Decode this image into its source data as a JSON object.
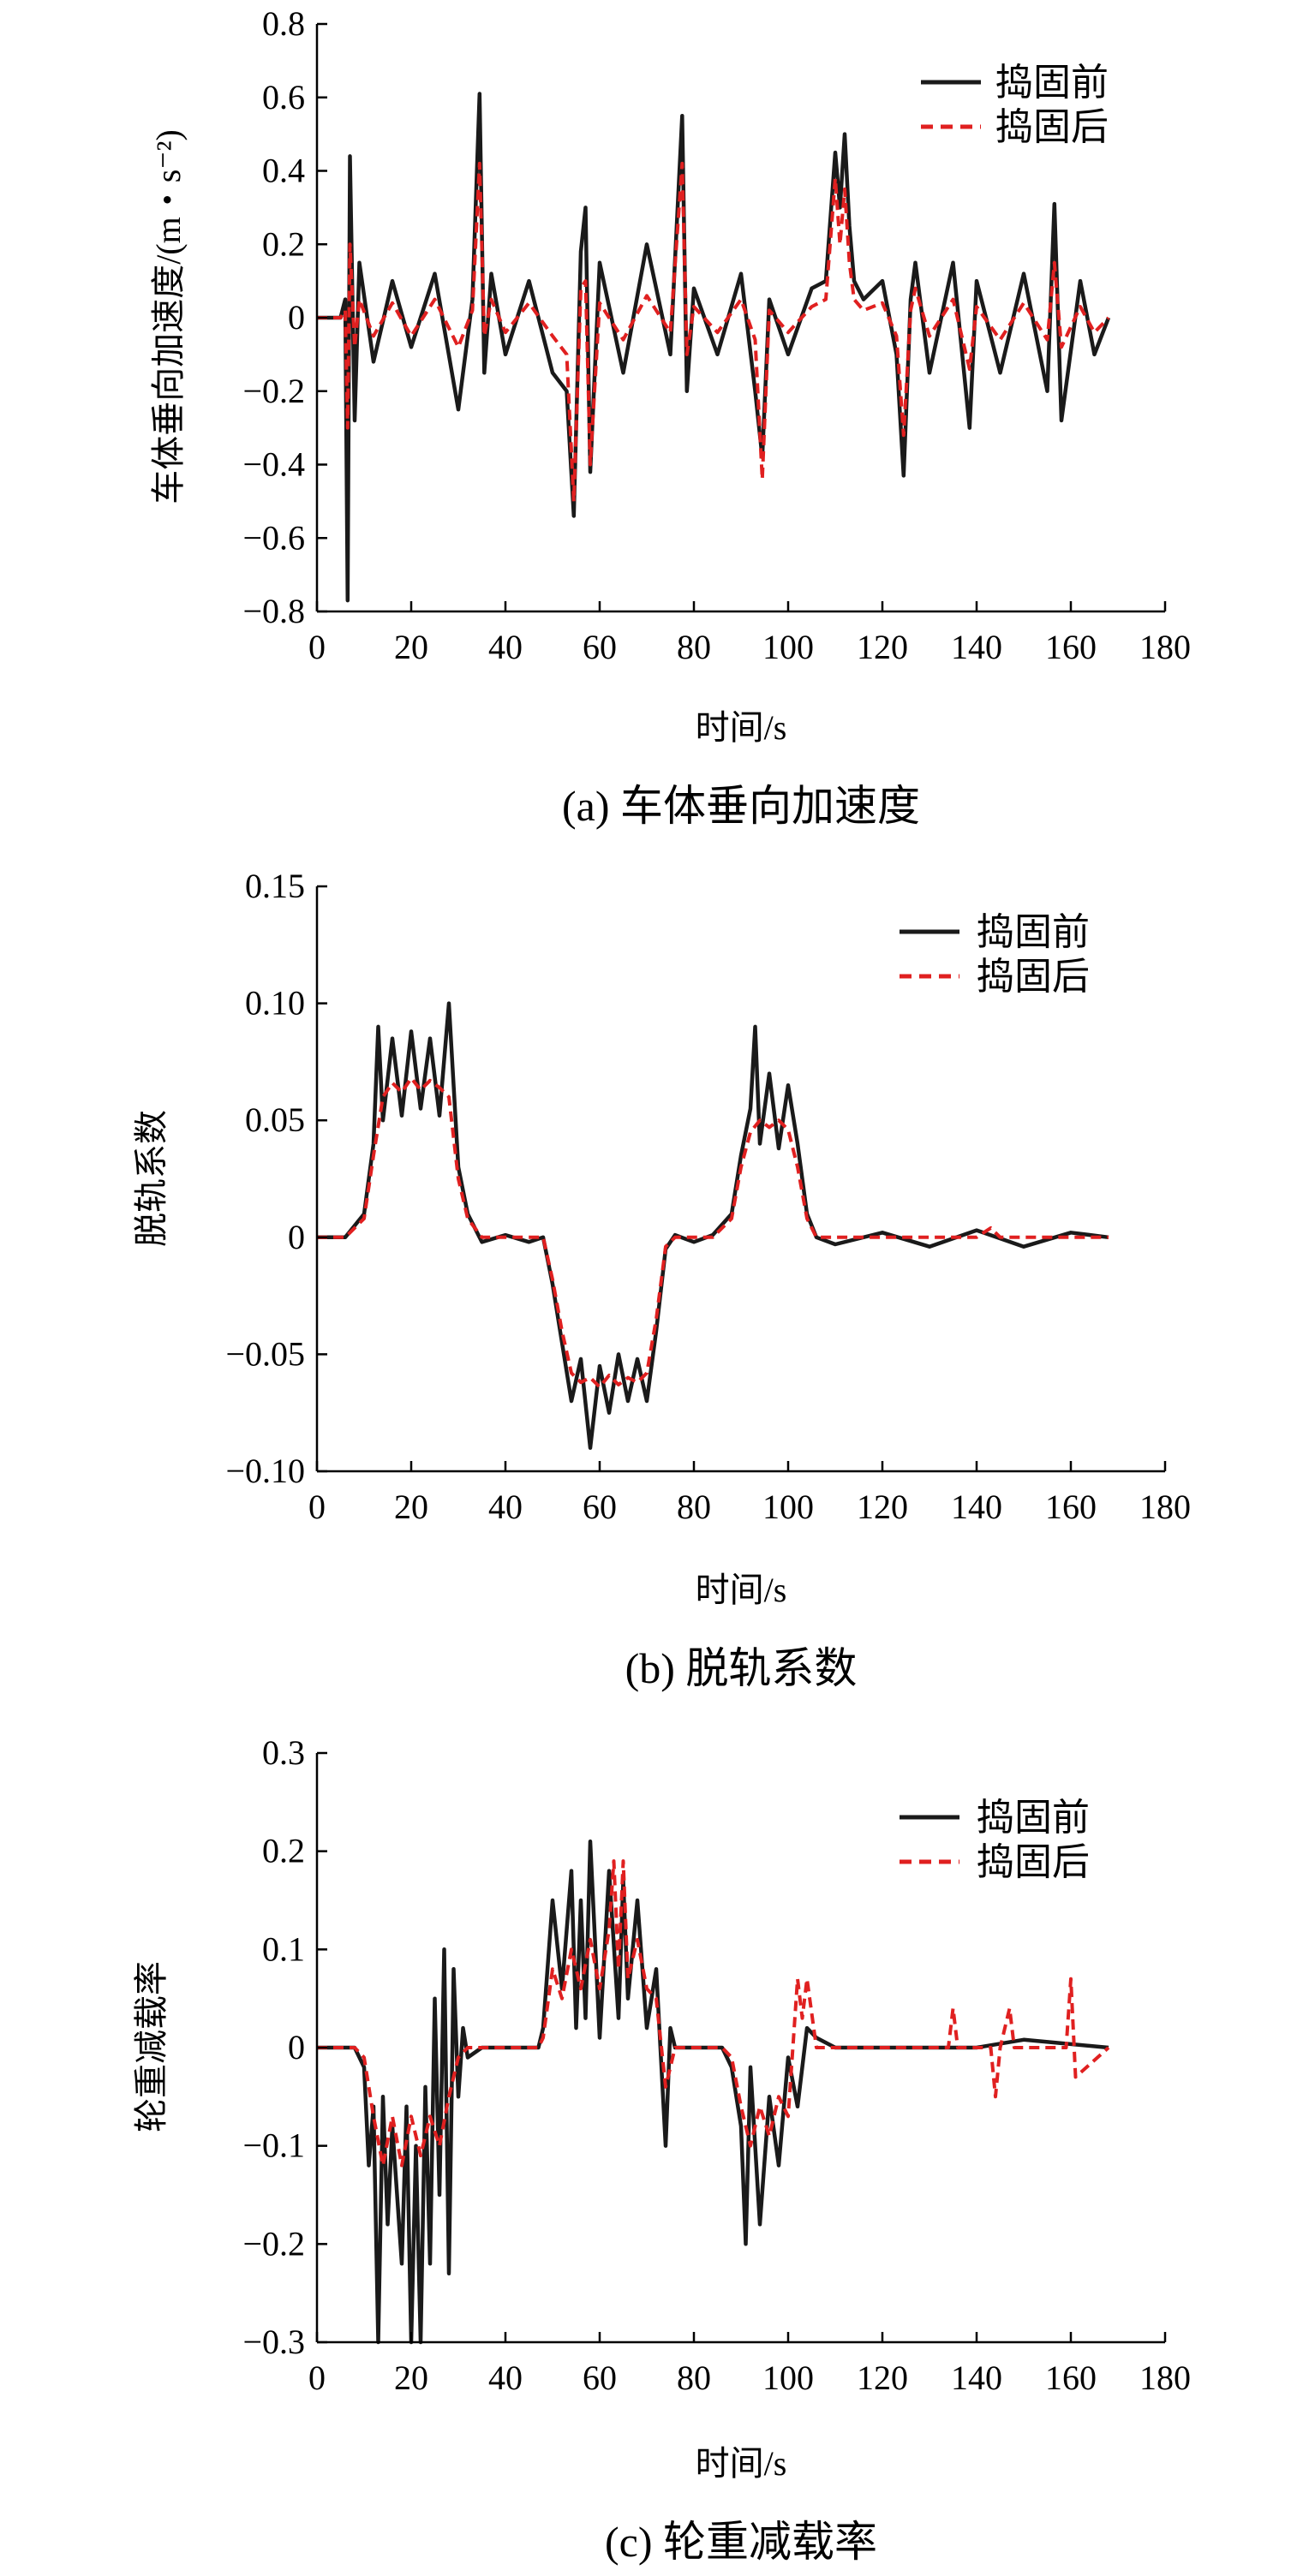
{
  "chart_data": [
    {
      "type": "line",
      "caption": "(a) 车体垂向加速度",
      "xlabel": "时间/s",
      "ylabel": "车体垂向加速度/(m・s⁻²)",
      "xlim": [
        0,
        180
      ],
      "ylim": [
        -0.8,
        0.8
      ],
      "xticks": [
        0,
        20,
        40,
        60,
        80,
        100,
        120,
        140,
        160,
        180
      ],
      "xtick_labels": [
        "0",
        "20",
        "40",
        "60",
        "80",
        "100",
        "120",
        "140",
        "160",
        "180"
      ],
      "yticks": [
        -0.8,
        -0.6,
        -0.4,
        -0.2,
        0,
        0.2,
        0.4,
        0.6,
        0.8
      ],
      "ytick_labels": [
        "−0.8",
        "−0.6",
        "−0.4",
        "−0.2",
        "0",
        "0.2",
        "0.4",
        "0.6",
        "0.8"
      ],
      "legend_position": "top-right",
      "series": [
        {
          "name": "捣固前",
          "color": "#1a1a1a",
          "dash": "solid",
          "x": [
            0,
            5,
            6,
            6.5,
            7,
            8,
            9,
            12,
            16,
            20,
            25,
            30,
            33,
            34.5,
            35.5,
            37,
            40,
            45,
            50,
            53,
            54.5,
            56,
            57,
            58,
            60,
            65,
            70,
            75,
            77.5,
            78.5,
            80,
            85,
            90,
            93,
            94.5,
            96,
            100,
            105,
            108,
            110,
            111,
            112,
            113,
            114,
            116,
            120,
            123,
            124.5,
            126,
            127,
            130,
            135,
            138.5,
            140,
            145,
            150,
            155,
            156.5,
            158,
            162,
            165,
            168
          ],
          "y": [
            0,
            0,
            0.05,
            -0.77,
            0.44,
            -0.28,
            0.15,
            -0.12,
            0.1,
            -0.08,
            0.12,
            -0.25,
            0.05,
            0.61,
            -0.15,
            0.12,
            -0.1,
            0.1,
            -0.15,
            -0.2,
            -0.54,
            0.18,
            0.3,
            -0.42,
            0.15,
            -0.15,
            0.2,
            -0.1,
            0.55,
            -0.2,
            0.08,
            -0.1,
            0.12,
            -0.2,
            -0.38,
            0.05,
            -0.1,
            0.08,
            0.1,
            0.45,
            0.3,
            0.5,
            0.25,
            0.1,
            0.05,
            0.1,
            -0.1,
            -0.43,
            0.05,
            0.15,
            -0.15,
            0.15,
            -0.3,
            0.1,
            -0.15,
            0.12,
            -0.2,
            0.31,
            -0.28,
            0.1,
            -0.1,
            0
          ]
        },
        {
          "name": "捣固后",
          "color": "#e02020",
          "dash": "dashed",
          "x": [
            0,
            5,
            6,
            6.5,
            7,
            8,
            9,
            12,
            16,
            20,
            25,
            30,
            33,
            34.5,
            35.5,
            37,
            40,
            45,
            50,
            53,
            54.5,
            56,
            57,
            58,
            60,
            65,
            70,
            75,
            77.5,
            78.5,
            80,
            85,
            90,
            93,
            94.5,
            96,
            100,
            105,
            108,
            110,
            111,
            112,
            113,
            114,
            116,
            120,
            123,
            124.5,
            126,
            127,
            130,
            135,
            138.5,
            140,
            145,
            150,
            155,
            156.5,
            158,
            162,
            165,
            168
          ],
          "y": [
            0,
            0,
            0.02,
            -0.3,
            0.2,
            -0.08,
            0.05,
            -0.05,
            0.04,
            -0.05,
            0.05,
            -0.08,
            0.02,
            0.42,
            -0.05,
            0.05,
            -0.04,
            0.04,
            -0.05,
            -0.1,
            -0.5,
            0.08,
            0.1,
            -0.4,
            0.04,
            -0.06,
            0.06,
            -0.04,
            0.42,
            -0.1,
            0.03,
            -0.04,
            0.05,
            -0.06,
            -0.44,
            0.02,
            -0.04,
            0.03,
            0.05,
            0.38,
            0.2,
            0.35,
            0.15,
            0.05,
            0.02,
            0.04,
            -0.05,
            -0.32,
            0.02,
            0.08,
            -0.05,
            0.05,
            -0.14,
            0.03,
            -0.06,
            0.04,
            -0.06,
            0.15,
            -0.08,
            0.03,
            -0.04,
            0
          ]
        }
      ]
    },
    {
      "type": "line",
      "caption": "(b) 脱轨系数",
      "xlabel": "时间/s",
      "ylabel": "脱轨系数",
      "xlim": [
        0,
        180
      ],
      "ylim": [
        -0.1,
        0.15
      ],
      "xticks": [
        0,
        20,
        40,
        60,
        80,
        100,
        120,
        140,
        160,
        180
      ],
      "xtick_labels": [
        "0",
        "20",
        "40",
        "60",
        "80",
        "100",
        "120",
        "140",
        "160",
        "180"
      ],
      "yticks": [
        -0.1,
        -0.05,
        0,
        0.05,
        0.1,
        0.15
      ],
      "ytick_labels": [
        "−0.10",
        "−0.05",
        "0",
        "0.05",
        "0.10",
        "0.15"
      ],
      "legend_position": "top-right",
      "series": [
        {
          "name": "捣固前",
          "color": "#1a1a1a",
          "dash": "solid",
          "x": [
            0,
            6,
            10,
            12,
            13,
            14,
            16,
            18,
            20,
            22,
            24,
            26,
            28,
            30,
            32,
            35,
            40,
            45,
            48,
            50,
            52,
            54,
            56,
            58,
            60,
            62,
            64,
            66,
            68,
            70,
            72,
            74,
            76,
            80,
            84,
            88,
            90,
            92,
            93,
            94,
            96,
            98,
            100,
            102,
            104,
            106,
            110,
            120,
            130,
            140,
            150,
            160,
            168
          ],
          "y": [
            0,
            0,
            0.01,
            0.04,
            0.09,
            0.05,
            0.085,
            0.052,
            0.088,
            0.055,
            0.085,
            0.052,
            0.1,
            0.03,
            0.01,
            -0.002,
            0.001,
            -0.002,
            0,
            -0.02,
            -0.045,
            -0.07,
            -0.052,
            -0.09,
            -0.055,
            -0.075,
            -0.05,
            -0.07,
            -0.052,
            -0.07,
            -0.04,
            -0.005,
            0.001,
            -0.002,
            0.001,
            0.01,
            0.035,
            0.055,
            0.09,
            0.04,
            0.07,
            0.038,
            0.065,
            0.04,
            0.01,
            0,
            -0.003,
            0.002,
            -0.004,
            0.003,
            -0.004,
            0.002,
            0
          ]
        },
        {
          "name": "捣固后",
          "color": "#e02020",
          "dash": "dashed",
          "x": [
            0,
            6,
            10,
            12,
            14,
            16,
            18,
            20,
            22,
            24,
            26,
            28,
            30,
            32,
            35,
            40,
            45,
            48,
            50,
            52,
            54,
            56,
            58,
            60,
            62,
            64,
            66,
            68,
            70,
            72,
            74,
            76,
            80,
            84,
            88,
            90,
            92,
            94,
            96,
            98,
            100,
            102,
            104,
            106,
            110,
            120,
            130,
            140,
            143,
            145,
            150,
            160,
            168
          ],
          "y": [
            0,
            0,
            0.008,
            0.035,
            0.06,
            0.066,
            0.062,
            0.068,
            0.063,
            0.067,
            0.064,
            0.06,
            0.025,
            0.008,
            0,
            0,
            0,
            0,
            -0.018,
            -0.04,
            -0.058,
            -0.062,
            -0.06,
            -0.064,
            -0.059,
            -0.063,
            -0.06,
            -0.062,
            -0.058,
            -0.035,
            -0.004,
            0,
            0,
            0,
            0.008,
            0.03,
            0.045,
            0.05,
            0.047,
            0.05,
            0.046,
            0.03,
            0.008,
            0,
            0,
            0,
            0,
            0,
            0.004,
            0,
            0,
            0,
            0
          ]
        }
      ]
    },
    {
      "type": "line",
      "caption": "(c) 轮重减载率",
      "xlabel": "时间/s",
      "ylabel": "轮重减载率",
      "xlim": [
        0,
        180
      ],
      "ylim": [
        -0.3,
        0.3
      ],
      "xticks": [
        0,
        20,
        40,
        60,
        80,
        100,
        120,
        140,
        160,
        180
      ],
      "xtick_labels": [
        "0",
        "20",
        "40",
        "60",
        "80",
        "100",
        "120",
        "140",
        "160",
        "180"
      ],
      "yticks": [
        -0.3,
        -0.2,
        -0.1,
        0,
        0.1,
        0.2,
        0.3
      ],
      "ytick_labels": [
        "−0.3",
        "−0.2",
        "−0.1",
        "0",
        "0.1",
        "0.2",
        "0.3"
      ],
      "legend_position": "top-right",
      "series": [
        {
          "name": "捣固前",
          "color": "#1a1a1a",
          "dash": "solid",
          "x": [
            0,
            8,
            10,
            11,
            12,
            13,
            14,
            15,
            16,
            18,
            19,
            20,
            21,
            22,
            23,
            24,
            25,
            26,
            27,
            28,
            29,
            30,
            31,
            32,
            35,
            40,
            47,
            48,
            50,
            52,
            54,
            55,
            56,
            57,
            58,
            60,
            62,
            64,
            65,
            66,
            68,
            70,
            72,
            74,
            75,
            76,
            80,
            86,
            88,
            90,
            91,
            92,
            94,
            96,
            98,
            100,
            102,
            104,
            106,
            108,
            110,
            120,
            140,
            150,
            168
          ],
          "y": [
            0,
            0,
            -0.02,
            -0.12,
            -0.06,
            -0.3,
            -0.05,
            -0.18,
            -0.08,
            -0.22,
            -0.06,
            -0.3,
            -0.1,
            -0.3,
            -0.04,
            -0.22,
            0.05,
            -0.15,
            0.1,
            -0.23,
            0.08,
            -0.05,
            0.02,
            -0.01,
            0,
            0,
            0,
            0.02,
            0.15,
            0.06,
            0.18,
            0.02,
            0.15,
            0.03,
            0.21,
            0.01,
            0.18,
            0.03,
            0.17,
            0.05,
            0.15,
            0.02,
            0.08,
            -0.1,
            0.02,
            0,
            0,
            0,
            -0.02,
            -0.08,
            -0.2,
            -0.02,
            -0.18,
            -0.05,
            -0.12,
            -0.01,
            -0.06,
            0.02,
            0.01,
            0.005,
            0,
            0,
            0,
            0.008,
            0
          ]
        },
        {
          "name": "捣固后",
          "color": "#e02020",
          "dash": "dashed",
          "x": [
            0,
            8,
            10,
            12,
            14,
            16,
            18,
            20,
            22,
            24,
            26,
            28,
            30,
            32,
            35,
            47,
            48,
            50,
            52,
            54,
            56,
            58,
            60,
            62,
            63,
            64,
            65,
            66,
            68,
            70,
            72,
            74,
            76,
            86,
            88,
            90,
            92,
            94,
            96,
            98,
            100,
            102,
            103,
            104,
            106,
            120,
            134,
            135,
            136,
            143,
            144,
            145,
            147,
            148,
            149,
            159,
            160,
            161,
            168
          ],
          "y": [
            0,
            0,
            -0.01,
            -0.07,
            -0.12,
            -0.07,
            -0.12,
            -0.07,
            -0.11,
            -0.07,
            -0.1,
            -0.05,
            -0.01,
            0,
            0,
            0,
            0.01,
            0.08,
            0.05,
            0.1,
            0.06,
            0.11,
            0.06,
            0.12,
            0.19,
            0.08,
            0.19,
            0.07,
            0.11,
            0.06,
            0.05,
            -0.04,
            0,
            0,
            -0.01,
            -0.06,
            -0.1,
            -0.06,
            -0.09,
            -0.05,
            -0.07,
            0.07,
            0.03,
            0.07,
            0,
            0,
            0,
            0.04,
            0,
            0,
            -0.05,
            0,
            0.04,
            0,
            0,
            0,
            0.07,
            -0.03,
            0
          ]
        }
      ]
    }
  ]
}
